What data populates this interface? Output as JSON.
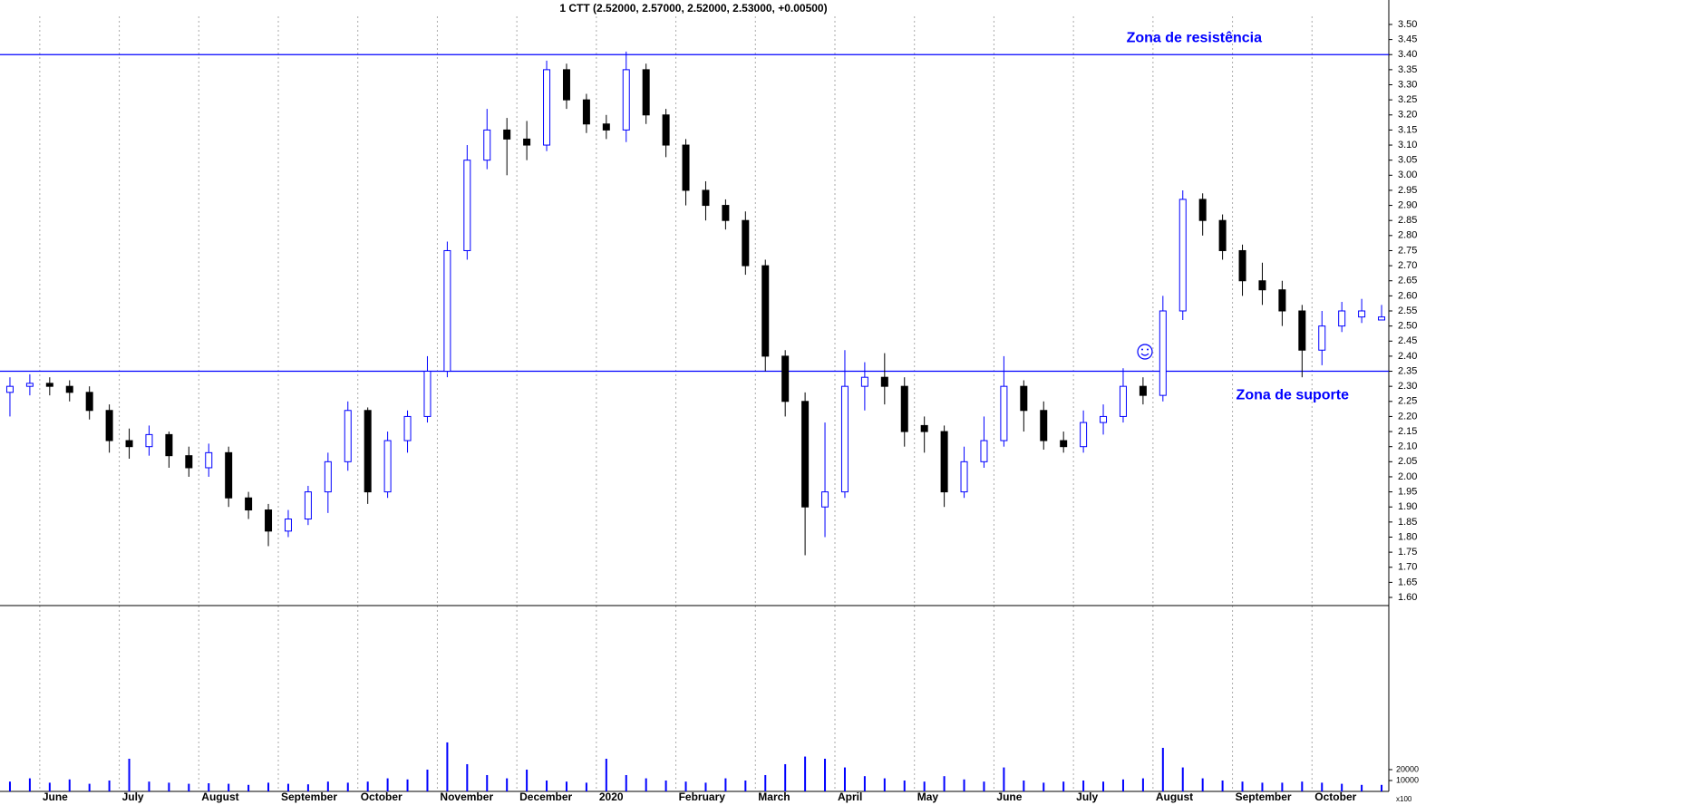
{
  "chart_data": {
    "type": "candlestick",
    "title": "1 CTT (2.52000, 2.57000, 2.52000, 2.53000, +0.00500)",
    "categories": [
      null,
      null,
      "June",
      null,
      null,
      null,
      "July",
      null,
      null,
      null,
      "August",
      null,
      null,
      null,
      "September",
      null,
      null,
      null,
      "October",
      null,
      null,
      null,
      "November",
      null,
      null,
      null,
      "December",
      null,
      null,
      null,
      "2020",
      null,
      null,
      null,
      "February",
      null,
      null,
      null,
      "March",
      null,
      null,
      null,
      "April",
      null,
      null,
      null,
      "May",
      null,
      null,
      null,
      "June",
      null,
      null,
      null,
      "July",
      null,
      null,
      null,
      "August",
      null,
      null,
      null,
      "September",
      null,
      null,
      null,
      "October",
      null,
      null,
      null
    ],
    "open": [
      2.28,
      2.3,
      2.31,
      2.3,
      2.28,
      2.22,
      2.12,
      2.1,
      2.14,
      2.07,
      2.03,
      2.08,
      1.93,
      1.89,
      1.82,
      1.86,
      1.95,
      2.05,
      2.22,
      1.95,
      2.12,
      2.2,
      2.35,
      2.75,
      3.05,
      3.15,
      3.12,
      3.1,
      3.35,
      3.25,
      3.17,
      3.15,
      3.35,
      3.2,
      3.1,
      2.95,
      2.9,
      2.85,
      2.7,
      2.4,
      2.25,
      1.9,
      1.95,
      2.3,
      2.33,
      2.3,
      2.17,
      2.15,
      1.95,
      2.05,
      2.12,
      2.3,
      2.22,
      2.12,
      2.1,
      2.18,
      2.2,
      2.3,
      2.27,
      2.55,
      2.92,
      2.85,
      2.75,
      2.65,
      2.62,
      2.55,
      2.42,
      2.5,
      2.53,
      2.52
    ],
    "high": [
      2.33,
      2.34,
      2.33,
      2.32,
      2.3,
      2.24,
      2.16,
      2.17,
      2.15,
      2.1,
      2.11,
      2.1,
      1.95,
      1.91,
      1.89,
      1.97,
      2.08,
      2.25,
      2.23,
      2.15,
      2.22,
      2.4,
      2.78,
      3.1,
      3.22,
      3.19,
      3.18,
      3.38,
      3.37,
      3.27,
      3.2,
      3.41,
      3.37,
      3.22,
      3.12,
      2.98,
      2.92,
      2.88,
      2.72,
      2.42,
      2.28,
      2.18,
      2.42,
      2.38,
      2.41,
      2.33,
      2.2,
      2.17,
      2.1,
      2.2,
      2.4,
      2.32,
      2.25,
      2.15,
      2.22,
      2.24,
      2.36,
      2.33,
      2.6,
      2.95,
      2.94,
      2.87,
      2.77,
      2.71,
      2.65,
      2.57,
      2.55,
      2.58,
      2.59,
      2.57
    ],
    "low": [
      2.2,
      2.27,
      2.27,
      2.25,
      2.19,
      2.08,
      2.06,
      2.07,
      2.03,
      2.0,
      2.0,
      1.9,
      1.86,
      1.77,
      1.8,
      1.84,
      1.88,
      2.02,
      1.91,
      1.93,
      2.08,
      2.18,
      2.33,
      2.72,
      3.02,
      3.0,
      3.05,
      3.08,
      3.22,
      3.14,
      3.12,
      3.11,
      3.17,
      3.06,
      2.9,
      2.85,
      2.82,
      2.67,
      2.35,
      2.2,
      1.74,
      1.8,
      1.93,
      2.22,
      2.24,
      2.1,
      2.08,
      1.9,
      1.93,
      2.03,
      2.1,
      2.15,
      2.09,
      2.08,
      2.08,
      2.14,
      2.18,
      2.24,
      2.25,
      2.52,
      2.8,
      2.72,
      2.6,
      2.57,
      2.5,
      2.33,
      2.37,
      2.48,
      2.51,
      2.52
    ],
    "close": [
      2.3,
      2.31,
      2.3,
      2.28,
      2.22,
      2.12,
      2.1,
      2.14,
      2.07,
      2.03,
      2.08,
      1.93,
      1.89,
      1.82,
      1.86,
      1.95,
      2.05,
      2.22,
      1.95,
      2.12,
      2.2,
      2.35,
      2.75,
      3.05,
      3.15,
      3.12,
      3.1,
      3.35,
      3.25,
      3.17,
      3.15,
      3.35,
      3.2,
      3.1,
      2.95,
      2.9,
      2.85,
      2.7,
      2.4,
      2.25,
      1.9,
      1.95,
      2.3,
      2.33,
      2.3,
      2.15,
      2.15,
      1.95,
      2.05,
      2.12,
      2.3,
      2.22,
      2.12,
      2.1,
      2.18,
      2.2,
      2.3,
      2.27,
      2.55,
      2.92,
      2.85,
      2.75,
      2.65,
      2.62,
      2.55,
      2.42,
      2.5,
      2.55,
      2.55,
      2.53
    ],
    "up_color": "#0000ff",
    "down_color": "#000000",
    "ylim": [
      1.573,
      3.527
    ],
    "yticks": [
      {
        "value": 1.6,
        "label": "1.60"
      },
      {
        "value": 1.65,
        "label": "1.65"
      },
      {
        "value": 1.7,
        "label": "1.70"
      },
      {
        "value": 1.75,
        "label": "1.75"
      },
      {
        "value": 1.8,
        "label": "1.80"
      },
      {
        "value": 1.85,
        "label": "1.85"
      },
      {
        "value": 1.9,
        "label": "1.90"
      },
      {
        "value": 1.95,
        "label": "1.95"
      },
      {
        "value": 2.0,
        "label": "2.00"
      },
      {
        "value": 2.05,
        "label": "2.05"
      },
      {
        "value": 2.1,
        "label": "2.10"
      },
      {
        "value": 2.15,
        "label": "2.15"
      },
      {
        "value": 2.2,
        "label": "2.20"
      },
      {
        "value": 2.25,
        "label": "2.25"
      },
      {
        "value": 2.3,
        "label": "2.30"
      },
      {
        "value": 2.35,
        "label": "2.35"
      },
      {
        "value": 2.4,
        "label": "2.40"
      },
      {
        "value": 2.45,
        "label": "2.45"
      },
      {
        "value": 2.5,
        "label": "2.50"
      },
      {
        "value": 2.55,
        "label": "2.55"
      },
      {
        "value": 2.6,
        "label": "2.60"
      },
      {
        "value": 2.65,
        "label": "2.65"
      },
      {
        "value": 2.7,
        "label": "2.70"
      },
      {
        "value": 2.75,
        "label": "2.75"
      },
      {
        "value": 2.8,
        "label": "2.80"
      },
      {
        "value": 2.85,
        "label": "2.85"
      },
      {
        "value": 2.9,
        "label": "2.90"
      },
      {
        "value": 2.95,
        "label": "2.95"
      },
      {
        "value": 3.0,
        "label": "3.00"
      },
      {
        "value": 3.05,
        "label": "3.05"
      },
      {
        "value": 3.1,
        "label": "3.10"
      },
      {
        "value": 3.15,
        "label": "3.15"
      },
      {
        "value": 3.2,
        "label": "3.20"
      },
      {
        "value": 3.25,
        "label": "3.25"
      },
      {
        "value": 3.3,
        "label": "3.30"
      },
      {
        "value": 3.35,
        "label": "3.35"
      },
      {
        "value": 3.4,
        "label": "3.40"
      },
      {
        "value": 3.45,
        "label": "3.45"
      },
      {
        "value": 3.5,
        "label": "3.50"
      }
    ],
    "hlines": [
      {
        "value": 3.4,
        "label": "Zona de resistência",
        "position": "above",
        "color": "#0000ff"
      },
      {
        "value": 2.35,
        "label": "Zona de suporte",
        "position": "below",
        "color": "#0000ff"
      }
    ],
    "volume": {
      "values": [
        9000,
        12000,
        8000,
        11000,
        7000,
        10000,
        30000,
        9000,
        8000,
        7000,
        7500,
        7000,
        6000,
        8000,
        7000,
        6500,
        9000,
        8000,
        9000,
        12000,
        11000,
        20000,
        45000,
        25000,
        15000,
        12000,
        20000,
        10000,
        9000,
        8000,
        30000,
        15000,
        12000,
        10000,
        9000,
        8000,
        12000,
        10000,
        15000,
        25000,
        32000,
        30000,
        22000,
        14000,
        12000,
        10000,
        9000,
        14000,
        11000,
        9000,
        22000,
        10000,
        8000,
        9000,
        10000,
        9000,
        11000,
        12000,
        40000,
        22000,
        12000,
        10000,
        9000,
        8000,
        8000,
        9000,
        8000,
        7000,
        6000,
        6000
      ],
      "color": "#0000ff",
      "ylim": [
        0,
        169000
      ],
      "yticks": [
        10000,
        20000
      ],
      "unit_label": "x100"
    }
  }
}
